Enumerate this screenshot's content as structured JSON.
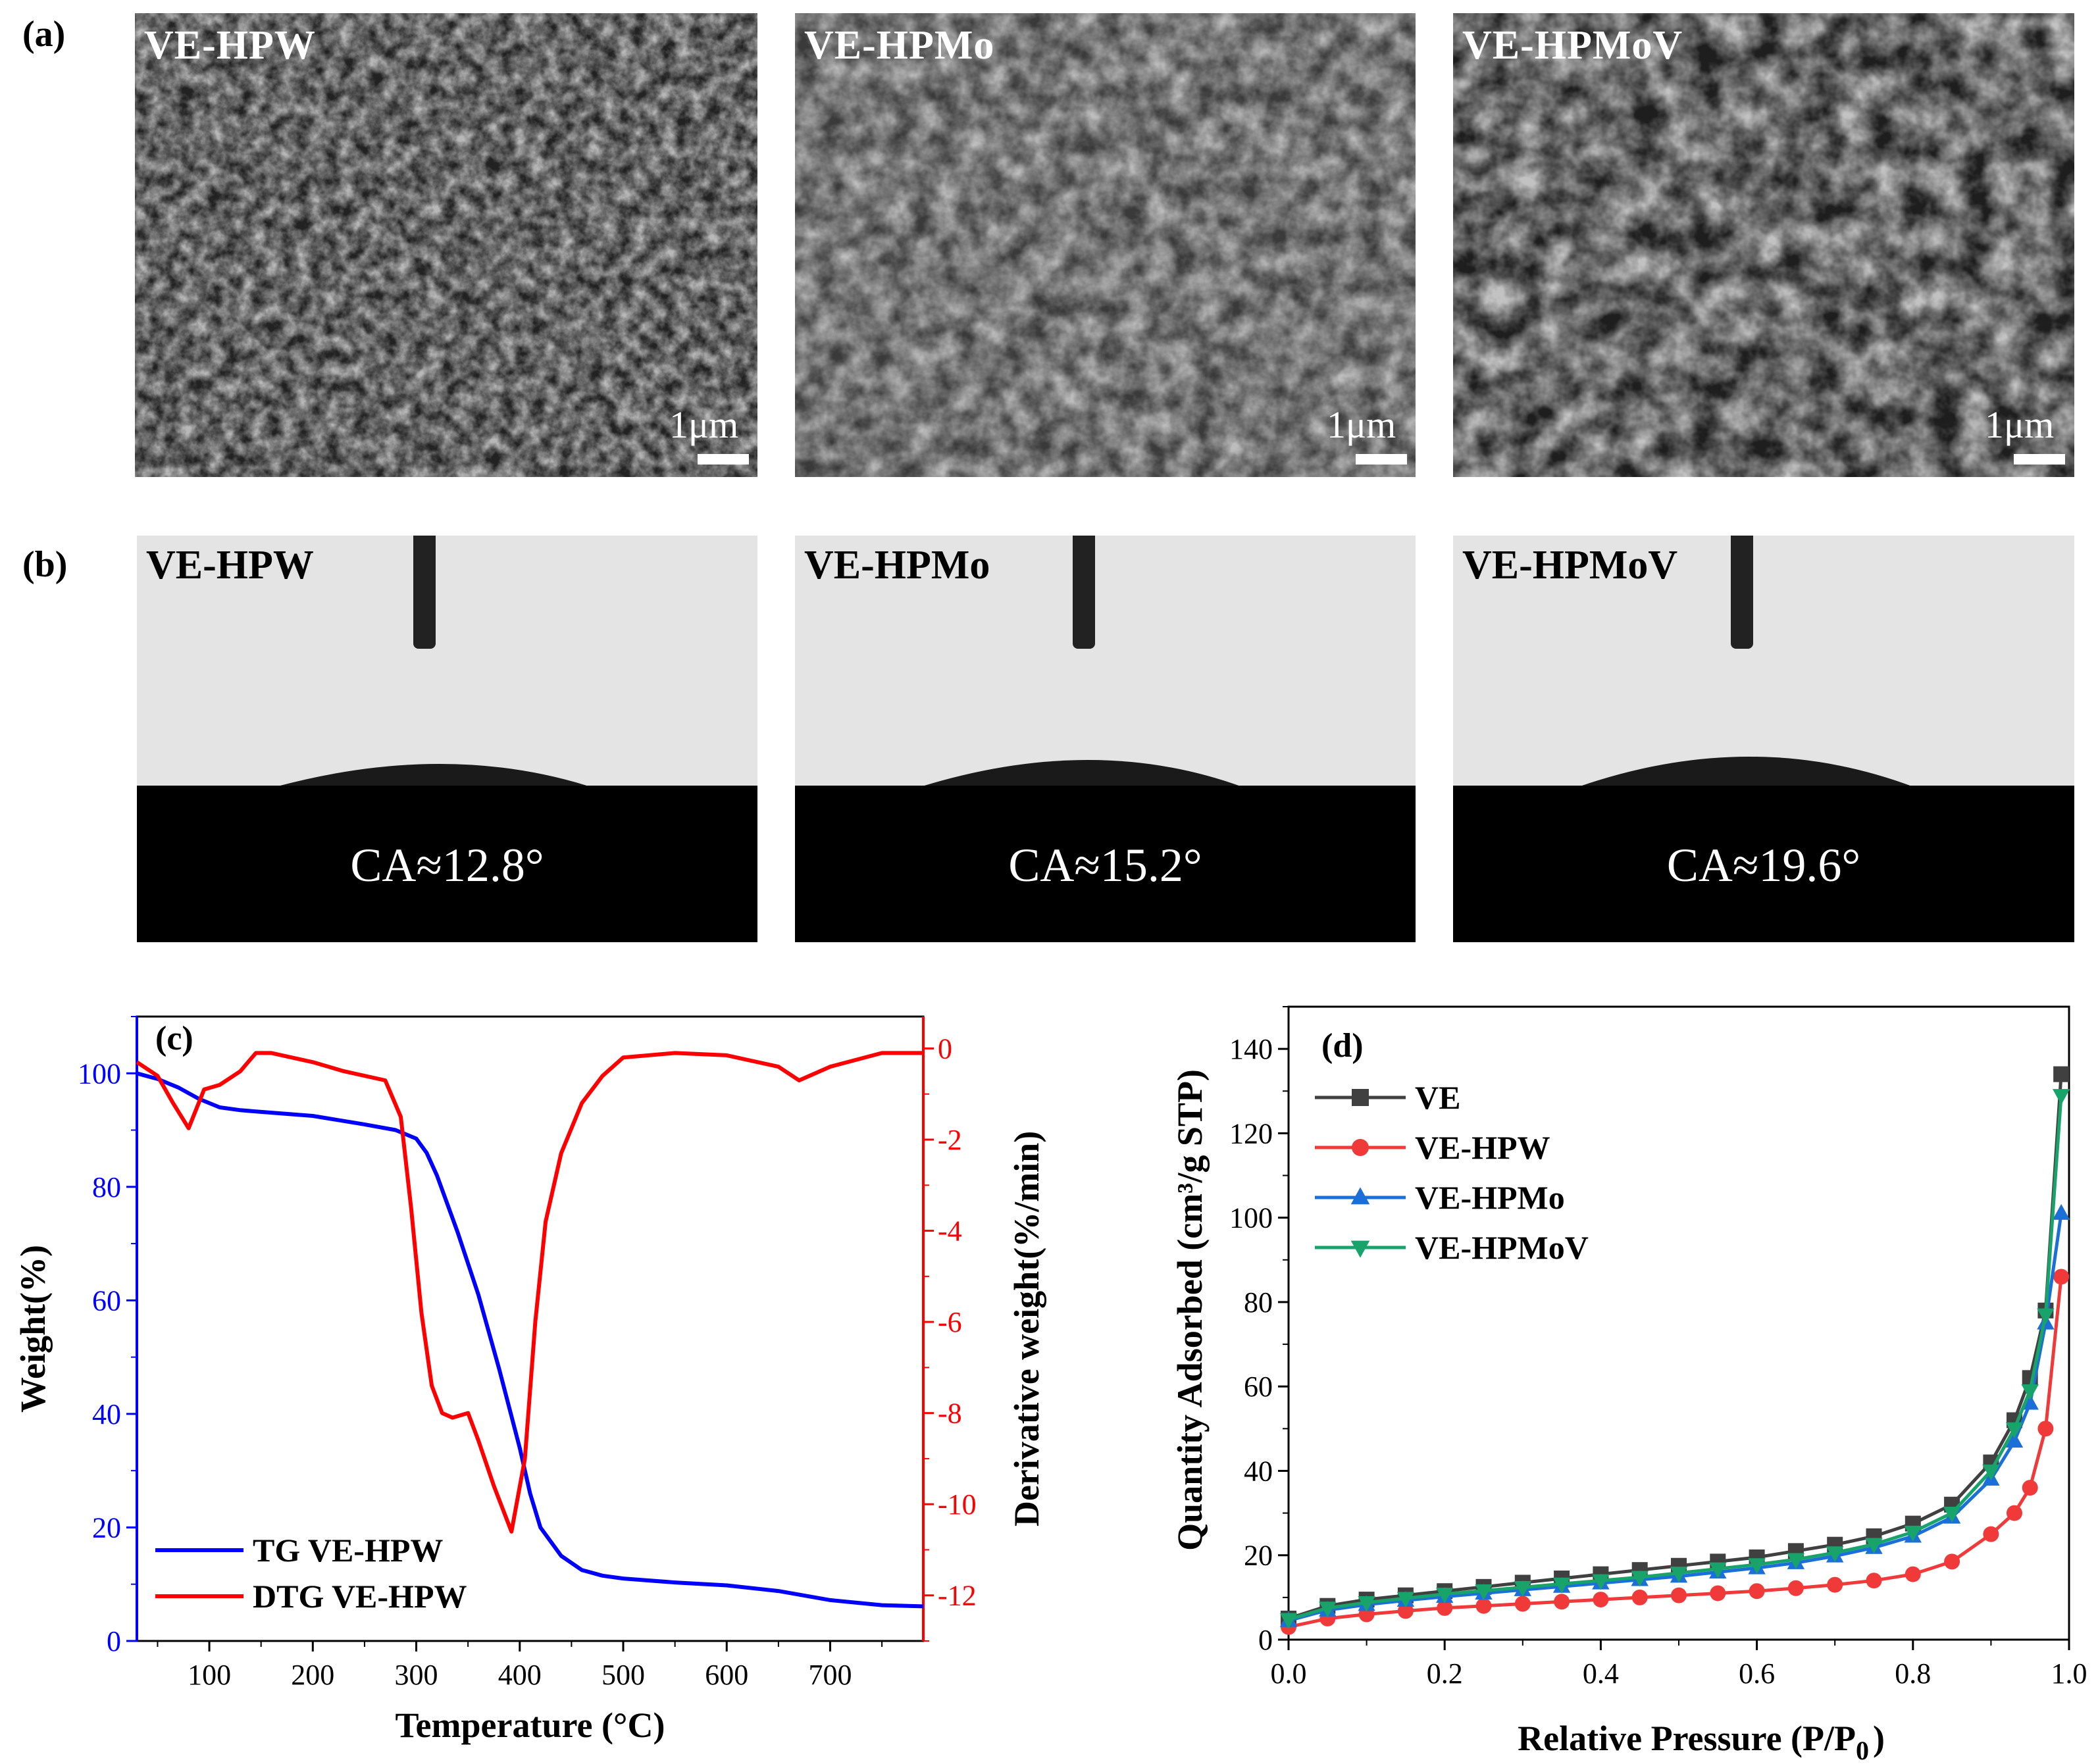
{
  "panels": {
    "a": "(a)",
    "b": "(b)",
    "c": "(c)",
    "d": "(d)"
  },
  "sem_images": [
    {
      "label": "VE-HPW",
      "scale": "1μm"
    },
    {
      "label": "VE-HPMo",
      "scale": "1μm"
    },
    {
      "label": "VE-HPMoV",
      "scale": "1μm"
    }
  ],
  "contact_angle": [
    {
      "label": "VE-HPW",
      "value": "CA≈12.8°"
    },
    {
      "label": "VE-HPMo",
      "value": "CA≈15.2°"
    },
    {
      "label": "VE-HPMoV",
      "value": "CA≈19.6°"
    }
  ],
  "colors": {
    "tg": "#0000ff",
    "dtg": "#ff0000",
    "ve": "#404040",
    "ve_hpw": "#f03a3a",
    "ve_hpmo": "#1a6fd8",
    "ve_hpmov": "#18a36a"
  },
  "chart_data": [
    {
      "type": "line",
      "panel": "(c)",
      "xlabel": "Temperature (°C)",
      "ylabel": "Weight(%)",
      "y2label": "Derivative weight(%/min)",
      "xlim": [
        30,
        790
      ],
      "ylim": [
        0,
        110
      ],
      "y2lim": [
        -13,
        0.7
      ],
      "xticks": [
        100,
        200,
        300,
        400,
        500,
        600,
        700
      ],
      "yticks": [
        0,
        20,
        40,
        60,
        80,
        100
      ],
      "y2ticks": [
        0,
        -2,
        -4,
        -6,
        -8,
        -10,
        -12
      ],
      "legend_position": "bottom-left",
      "series": [
        {
          "name": "TG VE-HPW",
          "axis": "left",
          "x": [
            30,
            50,
            70,
            90,
            110,
            130,
            150,
            200,
            250,
            280,
            300,
            310,
            320,
            340,
            360,
            380,
            400,
            410,
            420,
            440,
            460,
            480,
            500,
            550,
            600,
            650,
            700,
            750,
            790
          ],
          "y": [
            100,
            99,
            97.5,
            95.5,
            94,
            93.5,
            93.2,
            92.5,
            91,
            90,
            88.5,
            86,
            82,
            72,
            61,
            48,
            34,
            26,
            20,
            15,
            12.5,
            11.5,
            11,
            10.3,
            9.8,
            8.8,
            7.2,
            6.3,
            6.1
          ]
        },
        {
          "name": "DTG VE-HPW",
          "axis": "right",
          "x": [
            30,
            50,
            65,
            80,
            95,
            110,
            130,
            145,
            160,
            200,
            230,
            270,
            285,
            295,
            305,
            315,
            325,
            335,
            350,
            360,
            375,
            392,
            405,
            415,
            425,
            440,
            460,
            480,
            500,
            550,
            600,
            650,
            670,
            700,
            750,
            790
          ],
          "y": [
            -0.3,
            -0.6,
            -1.2,
            -1.75,
            -0.9,
            -0.8,
            -0.5,
            -0.1,
            -0.1,
            -0.3,
            -0.5,
            -0.7,
            -1.5,
            -3.5,
            -5.8,
            -7.4,
            -8.0,
            -8.1,
            -8.0,
            -8.6,
            -9.6,
            -10.6,
            -9.0,
            -6.0,
            -3.8,
            -2.3,
            -1.2,
            -0.6,
            -0.2,
            -0.1,
            -0.15,
            -0.4,
            -0.7,
            -0.4,
            -0.1,
            -0.1
          ]
        }
      ]
    },
    {
      "type": "line",
      "panel": "(d)",
      "xlabel": "Relative Pressure (P/P0)",
      "ylabel": "Quantity Adsorbed (cm³/g STP)",
      "xlim": [
        0,
        1.0
      ],
      "ylim": [
        0,
        150
      ],
      "xticks": [
        0.0,
        0.2,
        0.4,
        0.6,
        0.8,
        1.0
      ],
      "yticks": [
        0,
        20,
        40,
        60,
        80,
        100,
        120,
        140
      ],
      "legend_position": "top-left",
      "x": [
        0.0,
        0.05,
        0.1,
        0.15,
        0.2,
        0.25,
        0.3,
        0.35,
        0.4,
        0.45,
        0.5,
        0.55,
        0.6,
        0.65,
        0.7,
        0.75,
        0.8,
        0.85,
        0.9,
        0.93,
        0.95,
        0.97,
        0.99
      ],
      "series": [
        {
          "name": "VE",
          "marker": "square",
          "values": [
            5,
            8,
            9.5,
            10.5,
            11.5,
            12.5,
            13.5,
            14.5,
            15.5,
            16.5,
            17.5,
            18.5,
            19.5,
            21,
            22.5,
            24.5,
            27.5,
            32,
            42,
            52,
            62,
            78,
            134
          ]
        },
        {
          "name": "VE-HPW",
          "marker": "circle",
          "values": [
            3,
            5,
            6,
            6.8,
            7.5,
            8,
            8.5,
            9,
            9.5,
            10,
            10.5,
            11,
            11.5,
            12.2,
            13,
            14,
            15.5,
            18.5,
            25,
            30,
            36,
            50,
            86
          ]
        },
        {
          "name": "VE-HPMo",
          "marker": "triangle-up",
          "values": [
            4.5,
            7,
            8.3,
            9.3,
            10.2,
            11,
            11.8,
            12.6,
            13.4,
            14.2,
            15,
            16,
            17,
            18.2,
            19.8,
            21.8,
            24.5,
            29,
            38,
            47,
            56,
            75,
            101
          ]
        },
        {
          "name": "VE-HPMoV",
          "marker": "triangle-down",
          "values": [
            4.8,
            7.5,
            8.8,
            9.8,
            10.8,
            11.6,
            12.4,
            13.2,
            14,
            14.8,
            15.8,
            16.8,
            17.8,
            19,
            20.6,
            22.6,
            25.5,
            30,
            40,
            50,
            59,
            77,
            129
          ]
        }
      ]
    }
  ]
}
